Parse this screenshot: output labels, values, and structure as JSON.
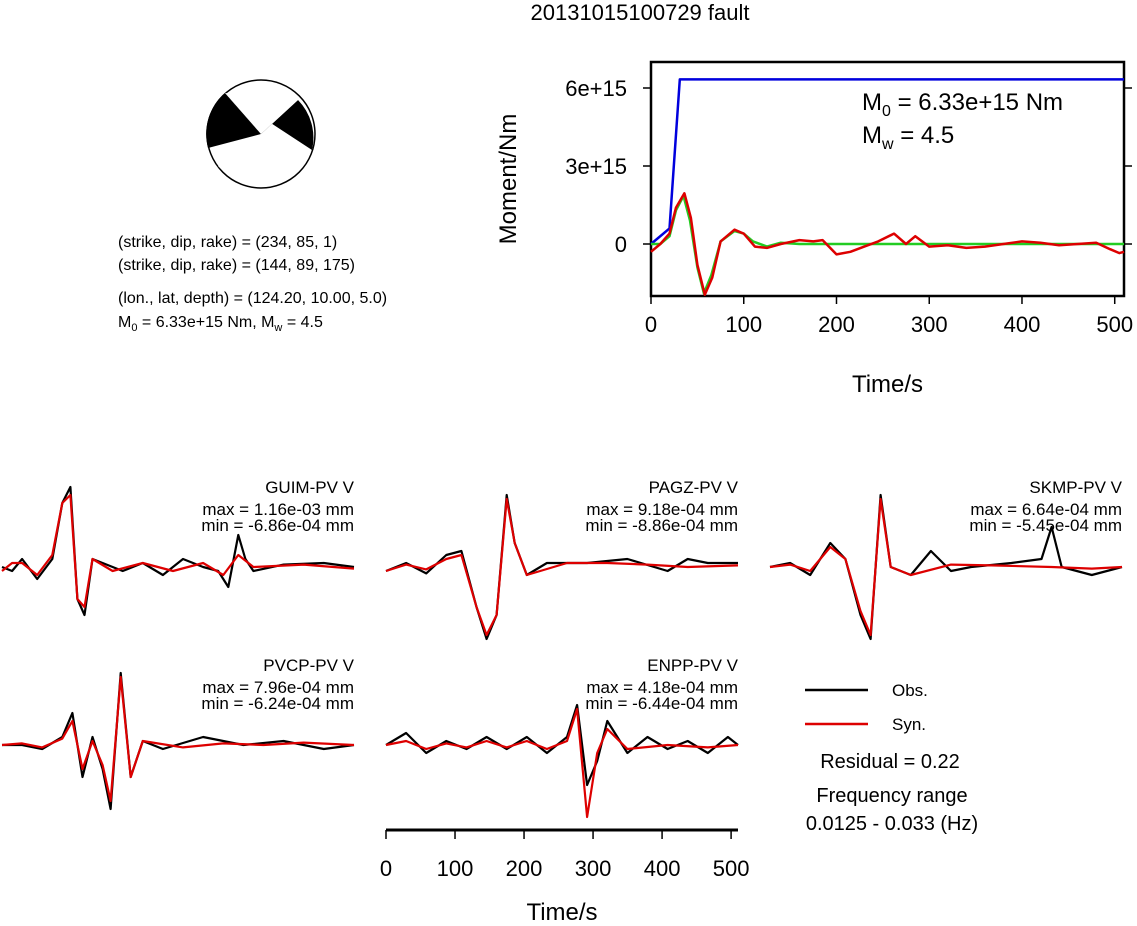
{
  "title": "20131015100729 fault",
  "focal": {
    "line1": "(strike, dip, rake) = (234, 85, 1)",
    "line2": "(strike, dip, rake) = (144, 89, 175)",
    "line3": "(lon., lat, depth) = (124.20, 10.00, 5.0)",
    "m0_prefix": "M",
    "m0_sub": "0",
    "m0_rest": " = 6.33e+15 Nm, M",
    "mw_sub": "w",
    "mw_rest": " = 4.5"
  },
  "moment_panel": {
    "m0_label": "M",
    "m0_sub": "0",
    "m0_value": " = 6.33e+15 Nm",
    "mw_label": "M",
    "mw_sub": "w",
    "mw_value": " = 4.5"
  },
  "colors": {
    "observed": "#000000",
    "synthetic": "#dd0000",
    "moment": "#0000dd",
    "source_fit": "#22cc22"
  },
  "chart_data": [
    {
      "type": "line",
      "name": "moment",
      "xlabel": "Time/s",
      "ylabel": "Moment/Nm",
      "xlim": [
        0,
        510
      ],
      "ylim": [
        -2000000000000000.0,
        7000000000000000.0
      ],
      "xticks": [
        0,
        100,
        200,
        300,
        400,
        500
      ],
      "xtick_labels": [
        "0",
        "100",
        "200",
        "300",
        "400",
        "500"
      ],
      "yticks": [
        0,
        3000000000000000.0,
        6000000000000000.0
      ],
      "ytick_labels": [
        "0",
        "3e+15",
        "6e+15"
      ],
      "series": [
        {
          "color": "#0000dd",
          "x": [
            0,
            20,
            31,
            510
          ],
          "y": [
            0,
            600000000000000.0,
            6330000000000000.0,
            6330000000000000.0
          ]
        },
        {
          "color": "#22cc22",
          "x": [
            0,
            10,
            20,
            27,
            35,
            42,
            50,
            57,
            65,
            75,
            90,
            100,
            110,
            125,
            140,
            160,
            510
          ],
          "y": [
            0,
            0.0,
            300000000000000.0,
            1300000000000000.0,
            1850000000000000.0,
            900000000000000.0,
            -900000000000000.0,
            -1900000000000000.0,
            -1200000000000000.0,
            100000000000000.0,
            500000000000000.0,
            400000000000000.0,
            100000000000000.0,
            -100000000000000.0,
            50000000000000.0,
            0.0,
            0
          ]
        },
        {
          "color": "#dd0000",
          "x": [
            0,
            10,
            20,
            27,
            36,
            43,
            50,
            58,
            66,
            75,
            90,
            100,
            112,
            125,
            140,
            160,
            175,
            185,
            200,
            215,
            230,
            245,
            262,
            275,
            285,
            300,
            320,
            340,
            360,
            380,
            400,
            420,
            440,
            460,
            480,
            495,
            505,
            510
          ],
          "y": [
            -300000000000000.0,
            0.0,
            400000000000000.0,
            1400000000000000.0,
            1950000000000000.0,
            1000000000000000.0,
            -800000000000000.0,
            -1950000000000000.0,
            -1300000000000000.0,
            100000000000000.0,
            550000000000000.0,
            400000000000000.0,
            -100000000000000.0,
            -150000000000000.0,
            0.0,
            150000000000000.0,
            100000000000000.0,
            150000000000000.0,
            -400000000000000.0,
            -300000000000000.0,
            -100000000000000.0,
            100000000000000.0,
            400000000000000.0,
            0.0,
            300000000000000.0,
            -100000000000000.0,
            -50000000000000.0,
            -150000000000000.0,
            -100000000000000.0,
            0.0,
            100000000000000.0,
            50000000000000.0,
            -50000000000000.0,
            0.0,
            50000000000000.0,
            -200000000000000.0,
            -350000000000000.0,
            -300000000000000.0
          ]
        }
      ]
    },
    {
      "type": "line",
      "name": "waveforms",
      "xlabel": "Time/s",
      "xlim": [
        0,
        510
      ],
      "xticks": [
        0,
        100,
        200,
        300,
        400,
        500
      ],
      "xtick_labels": [
        "0",
        "100",
        "200",
        "300",
        "400",
        "500"
      ],
      "stations": [
        {
          "label": "GUIM-PV V",
          "max": "max = 1.16e-03 mm",
          "min": "min = -6.86e-04 mm",
          "col": 0,
          "row": 0,
          "obs": [
            [
              0,
              0
            ],
            [
              10,
              -0.05
            ],
            [
              20,
              0.1
            ],
            [
              35,
              -0.15
            ],
            [
              50,
              0.1
            ],
            [
              60,
              0.8
            ],
            [
              68,
              1.0
            ],
            [
              75,
              -0.4
            ],
            [
              82,
              -0.6
            ],
            [
              90,
              0.1
            ],
            [
              100,
              0.05
            ],
            [
              120,
              -0.05
            ],
            [
              140,
              0.05
            ],
            [
              160,
              -0.1
            ],
            [
              180,
              0.1
            ],
            [
              200,
              0.0
            ],
            [
              215,
              -0.05
            ],
            [
              225,
              -0.25
            ],
            [
              235,
              0.4
            ],
            [
              242,
              0.1
            ],
            [
              250,
              -0.05
            ],
            [
              280,
              0.03
            ],
            [
              320,
              0.05
            ],
            [
              350,
              0.0
            ]
          ],
          "syn": [
            [
              0,
              -0.05
            ],
            [
              10,
              0.05
            ],
            [
              20,
              0.05
            ],
            [
              35,
              -0.1
            ],
            [
              50,
              0.15
            ],
            [
              60,
              0.8
            ],
            [
              68,
              0.9
            ],
            [
              75,
              -0.4
            ],
            [
              82,
              -0.5
            ],
            [
              90,
              0.1
            ],
            [
              110,
              -0.05
            ],
            [
              140,
              0.05
            ],
            [
              170,
              -0.05
            ],
            [
              200,
              0.05
            ],
            [
              220,
              -0.1
            ],
            [
              235,
              0.15
            ],
            [
              250,
              0.0
            ],
            [
              300,
              0.03
            ],
            [
              350,
              -0.02
            ]
          ]
        },
        {
          "label": "PAGZ-PV V",
          "max": "max = 9.18e-04 mm",
          "min": "min = -8.86e-04 mm",
          "col": 1,
          "row": 0,
          "obs": [
            [
              0,
              -0.05
            ],
            [
              20,
              0.05
            ],
            [
              40,
              -0.08
            ],
            [
              60,
              0.15
            ],
            [
              75,
              0.2
            ],
            [
              90,
              -0.5
            ],
            [
              100,
              -0.9
            ],
            [
              110,
              -0.6
            ],
            [
              120,
              0.9
            ],
            [
              128,
              0.3
            ],
            [
              140,
              -0.1
            ],
            [
              160,
              0.05
            ],
            [
              200,
              0.05
            ],
            [
              240,
              0.1
            ],
            [
              280,
              -0.05
            ],
            [
              300,
              0.1
            ],
            [
              320,
              0.05
            ],
            [
              350,
              0.05
            ]
          ],
          "syn": [
            [
              0,
              -0.05
            ],
            [
              20,
              0.03
            ],
            [
              40,
              -0.03
            ],
            [
              60,
              0.1
            ],
            [
              75,
              0.15
            ],
            [
              90,
              -0.5
            ],
            [
              100,
              -0.85
            ],
            [
              110,
              -0.6
            ],
            [
              120,
              0.85
            ],
            [
              128,
              0.3
            ],
            [
              140,
              -0.1
            ],
            [
              180,
              0.05
            ],
            [
              220,
              0.05
            ],
            [
              260,
              0.03
            ],
            [
              300,
              0.0
            ],
            [
              350,
              0.02
            ]
          ]
        },
        {
          "label": "SKMP-PV V",
          "max": "max = 6.64e-04 mm",
          "min": "min = -5.45e-04 mm",
          "col": 2,
          "row": 0,
          "obs": [
            [
              0,
              0
            ],
            [
              20,
              0.05
            ],
            [
              40,
              -0.1
            ],
            [
              60,
              0.3
            ],
            [
              75,
              0.1
            ],
            [
              90,
              -0.6
            ],
            [
              100,
              -0.9
            ],
            [
              110,
              0.9
            ],
            [
              120,
              0.0
            ],
            [
              140,
              -0.1
            ],
            [
              160,
              0.2
            ],
            [
              180,
              -0.05
            ],
            [
              200,
              0.0
            ],
            [
              240,
              0.05
            ],
            [
              270,
              0.1
            ],
            [
              280,
              0.5
            ],
            [
              290,
              0.0
            ],
            [
              320,
              -0.1
            ],
            [
              350,
              0.0
            ]
          ],
          "syn": [
            [
              0,
              0
            ],
            [
              20,
              0.03
            ],
            [
              40,
              -0.05
            ],
            [
              60,
              0.25
            ],
            [
              75,
              0.1
            ],
            [
              90,
              -0.55
            ],
            [
              100,
              -0.85
            ],
            [
              110,
              0.85
            ],
            [
              120,
              0.0
            ],
            [
              140,
              -0.1
            ],
            [
              180,
              0.03
            ],
            [
              220,
              0.02
            ],
            [
              280,
              0.0
            ],
            [
              320,
              -0.02
            ],
            [
              350,
              0.0
            ]
          ]
        },
        {
          "label": "PVCP-PV V",
          "max": "max = 7.96e-04 mm",
          "min": "min = -6.24e-04 mm",
          "col": 0,
          "row": 1,
          "obs": [
            [
              0,
              0
            ],
            [
              20,
              0.0
            ],
            [
              40,
              -0.05
            ],
            [
              60,
              0.1
            ],
            [
              70,
              0.4
            ],
            [
              80,
              -0.4
            ],
            [
              90,
              0.1
            ],
            [
              100,
              -0.3
            ],
            [
              108,
              -0.8
            ],
            [
              118,
              0.9
            ],
            [
              128,
              -0.4
            ],
            [
              140,
              0.05
            ],
            [
              160,
              -0.05
            ],
            [
              200,
              0.1
            ],
            [
              240,
              0.0
            ],
            [
              280,
              0.05
            ],
            [
              320,
              -0.05
            ],
            [
              350,
              0.0
            ]
          ],
          "syn": [
            [
              0,
              0
            ],
            [
              20,
              0.02
            ],
            [
              40,
              -0.03
            ],
            [
              60,
              0.08
            ],
            [
              70,
              0.3
            ],
            [
              80,
              -0.3
            ],
            [
              90,
              0.05
            ],
            [
              100,
              -0.25
            ],
            [
              108,
              -0.7
            ],
            [
              118,
              0.85
            ],
            [
              128,
              -0.4
            ],
            [
              140,
              0.05
            ],
            [
              180,
              -0.03
            ],
            [
              220,
              0.02
            ],
            [
              260,
              0.0
            ],
            [
              300,
              0.03
            ],
            [
              350,
              0.0
            ]
          ]
        },
        {
          "label": "ENPP-PV V",
          "max": "max = 4.18e-04 mm",
          "min": "min = -6.44e-04 mm",
          "col": 1,
          "row": 1,
          "obs": [
            [
              0,
              0
            ],
            [
              20,
              0.15
            ],
            [
              40,
              -0.1
            ],
            [
              60,
              0.05
            ],
            [
              80,
              -0.05
            ],
            [
              100,
              0.1
            ],
            [
              120,
              -0.05
            ],
            [
              140,
              0.1
            ],
            [
              160,
              -0.1
            ],
            [
              180,
              0.1
            ],
            [
              190,
              0.5
            ],
            [
              200,
              -0.5
            ],
            [
              210,
              -0.2
            ],
            [
              220,
              0.3
            ],
            [
              240,
              -0.1
            ],
            [
              260,
              0.1
            ],
            [
              280,
              -0.05
            ],
            [
              300,
              0.05
            ],
            [
              320,
              -0.1
            ],
            [
              340,
              0.1
            ],
            [
              350,
              0.0
            ]
          ],
          "syn": [
            [
              0,
              0
            ],
            [
              20,
              0.05
            ],
            [
              40,
              -0.05
            ],
            [
              60,
              0.02
            ],
            [
              80,
              -0.03
            ],
            [
              100,
              0.05
            ],
            [
              120,
              -0.03
            ],
            [
              140,
              0.05
            ],
            [
              160,
              -0.05
            ],
            [
              180,
              0.05
            ],
            [
              190,
              0.45
            ],
            [
              200,
              -0.9
            ],
            [
              210,
              -0.1
            ],
            [
              220,
              0.2
            ],
            [
              240,
              -0.05
            ],
            [
              280,
              0.0
            ],
            [
              320,
              -0.03
            ],
            [
              350,
              0.0
            ]
          ]
        }
      ],
      "legend": {
        "obs_label": "Obs.",
        "syn_label": "Syn.",
        "residual": "Residual = 0.22",
        "freq_title": "Frequency range",
        "freq_value": "0.0125 - 0.033 (Hz)"
      }
    }
  ]
}
